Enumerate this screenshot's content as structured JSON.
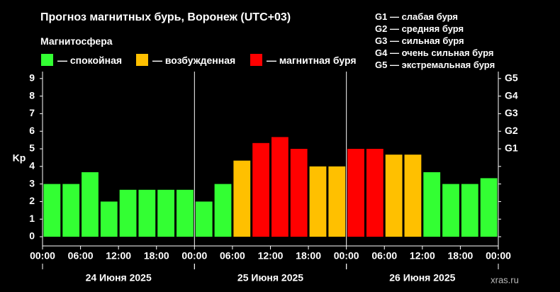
{
  "title": "Прогноз магнитных бурь, Воронеж (UTC+03)",
  "subtitle": "Магнитосфера",
  "legend": {
    "calm": {
      "label": "— спокойная",
      "color": "#33ff33"
    },
    "excited": {
      "label": "— возбужденная",
      "color": "#ffc000"
    },
    "storm": {
      "label": "— магнитная буря",
      "color": "#ff0000"
    }
  },
  "g_legend": [
    "G1 — слабая буря",
    "G2 — средняя буря",
    "G3 — сильная буря",
    "G4 — очень сильная буря",
    "G5 — экстремальная буря"
  ],
  "watermark": "xras.ru",
  "chart_data": {
    "type": "bar",
    "ylabel": "Kp",
    "ylim": [
      0,
      9
    ],
    "yticks": [
      "0",
      "1",
      "2",
      "3",
      "4",
      "5",
      "6",
      "7",
      "8",
      "9"
    ],
    "g_ticks": [
      {
        "level": 5,
        "label": "G1"
      },
      {
        "level": 6,
        "label": "G2"
      },
      {
        "level": 7,
        "label": "G3"
      },
      {
        "level": 8,
        "label": "G4"
      },
      {
        "level": 9,
        "label": "G5"
      }
    ],
    "xticks": [
      "00:00",
      "06:00",
      "12:00",
      "18:00",
      "00:00",
      "06:00",
      "12:00",
      "18:00",
      "00:00",
      "06:00",
      "12:00",
      "18:00",
      "00:00"
    ],
    "days": [
      "24 Июня 2025",
      "25 Июня 2025",
      "26 Июня 2025"
    ],
    "interval_hours": 3,
    "values": [
      3.0,
      3.0,
      3.67,
      2.0,
      2.67,
      2.67,
      2.67,
      2.67,
      2.0,
      3.0,
      4.33,
      5.33,
      5.67,
      5.0,
      4.0,
      4.0,
      5.0,
      5.0,
      4.67,
      4.67,
      3.67,
      3.0,
      3.0,
      3.33
    ],
    "grid": false
  }
}
